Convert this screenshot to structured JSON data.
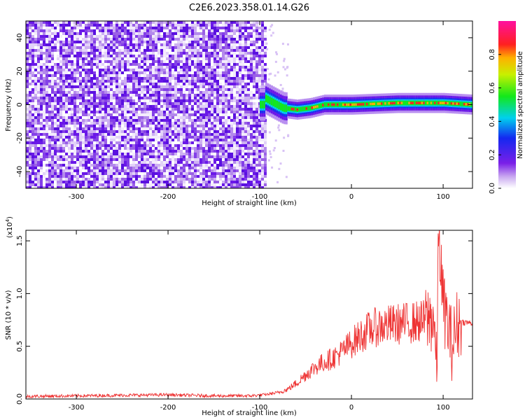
{
  "figure": {
    "title": "C2E6.2023.358.01.14.G26"
  },
  "chart_data": [
    {
      "type": "heatmap",
      "title": "C2E6.2023.358.01.14.G26",
      "xlabel": "Height of straight line (km)",
      "ylabel": "Frequency (Hz)",
      "xlim": [
        -355,
        132
      ],
      "ylim": [
        -50,
        50
      ],
      "xticks": [
        -300,
        -200,
        -100,
        0,
        100
      ],
      "yticks": [
        -40,
        -20,
        0,
        20,
        40
      ],
      "xtick_labels": [
        "-300",
        "-200",
        "-100",
        "0",
        "100"
      ],
      "ytick_labels": [
        "-40",
        "-20",
        "0",
        "20",
        "40"
      ],
      "colorbar": {
        "label": "Normalized spectral amplitude",
        "range": [
          0,
          1
        ],
        "ticks": [
          0.0,
          0.2,
          0.4,
          0.6,
          0.8
        ],
        "tick_labels": [
          "0.0",
          "0.2",
          "0.4",
          "0.6",
          "0.8"
        ],
        "colormap": "rainbow (white-purple-blue-cyan-green-yellow-red-magenta)"
      },
      "regions": [
        {
          "name": "noise",
          "x_range": [
            -355,
            -95
          ],
          "freq_range": [
            -50,
            50
          ],
          "amplitude": "low, scattered purple/blue"
        },
        {
          "name": "signal",
          "x_range": [
            -100,
            132
          ],
          "center_freq": [
            [
              -95,
              4
            ],
            [
              -85,
              1
            ],
            [
              -75,
              -2
            ],
            [
              -60,
              -3
            ],
            [
              -45,
              -2
            ],
            [
              -30,
              0
            ],
            [
              -20,
              0
            ],
            [
              0,
              0
            ],
            [
              50,
              1
            ],
            [
              100,
              1
            ],
            [
              132,
              0
            ]
          ],
          "amplitude": "high, red core near 0 Hz"
        }
      ],
      "grid": false
    },
    {
      "type": "line",
      "xlabel": "Height of straight line (km)",
      "ylabel": "SNR (10 * v/v)",
      "y_multiplier": "(x10",
      "y_multiplier_exp": "4",
      "xlim": [
        -355,
        132
      ],
      "ylim": [
        0,
        16000
      ],
      "xticks": [
        -300,
        -200,
        -100,
        0,
        100
      ],
      "yticks": [
        0,
        5000,
        10000,
        15000
      ],
      "xtick_labels": [
        "-300",
        "-200",
        "-100",
        "0",
        "100"
      ],
      "ytick_labels": [
        "0.0",
        "0.5",
        "1.0",
        "1.5"
      ],
      "color": "#ee3333",
      "x": [
        -355,
        -300,
        -200,
        -150,
        -110,
        -95,
        -80,
        -70,
        -60,
        -50,
        -40,
        -30,
        -20,
        -10,
        0,
        10,
        20,
        30,
        40,
        50,
        60,
        70,
        80,
        90,
        93,
        95,
        100,
        110,
        115,
        120,
        132
      ],
      "y": [
        250,
        300,
        400,
        300,
        300,
        400,
        600,
        900,
        1500,
        2300,
        3000,
        3500,
        3900,
        4500,
        5300,
        6000,
        6600,
        6900,
        7000,
        7100,
        7200,
        7300,
        7400,
        7800,
        2000,
        16000,
        9000,
        5000,
        7000,
        7300,
        7200
      ],
      "grid": false
    }
  ]
}
